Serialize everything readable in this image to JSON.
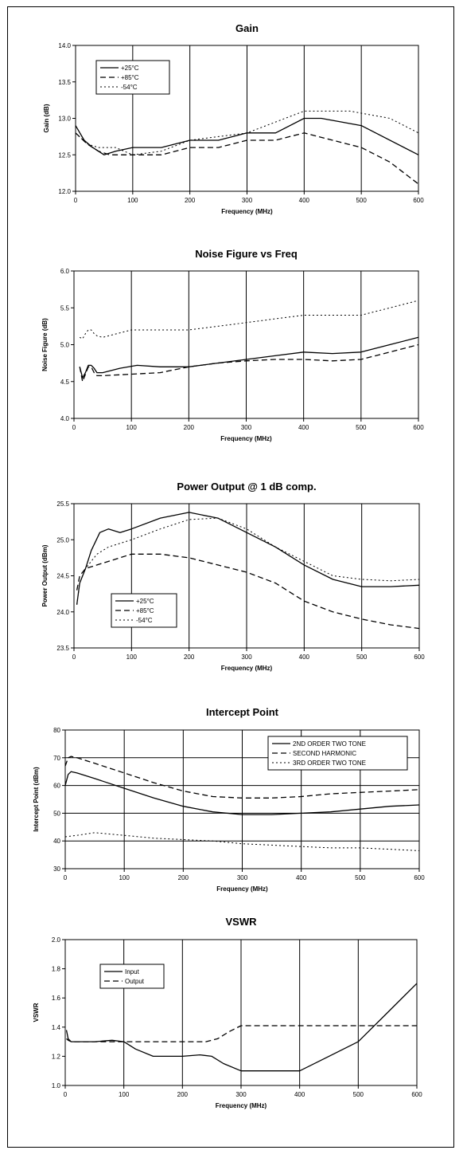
{
  "chart_data": [
    {
      "type": "line",
      "title": "Gain",
      "xlabel": "Frequency (MHz)",
      "ylabel": "Gain (dB)",
      "xlim": [
        0,
        600
      ],
      "ylim": [
        12.0,
        14.0
      ],
      "xticks": [
        "0",
        "100",
        "200",
        "300",
        "400",
        "500",
        "600"
      ],
      "yticks": [
        "12.0",
        "12.5",
        "13.0",
        "13.5",
        "14.0"
      ],
      "grid": "vertical",
      "legend": "top-left",
      "series": [
        {
          "name": "+25°C",
          "style": "solid",
          "x": [
            0,
            15,
            30,
            50,
            70,
            100,
            150,
            200,
            250,
            300,
            350,
            400,
            430,
            500,
            600
          ],
          "y": [
            12.9,
            12.7,
            12.6,
            12.5,
            12.55,
            12.6,
            12.6,
            12.7,
            12.7,
            12.8,
            12.8,
            13.0,
            13.0,
            12.9,
            12.5
          ]
        },
        {
          "name": "+85°C",
          "style": "dashed",
          "x": [
            0,
            20,
            40,
            60,
            100,
            150,
            200,
            250,
            300,
            350,
            400,
            450,
            500,
            550,
            600
          ],
          "y": [
            12.8,
            12.65,
            12.55,
            12.5,
            12.5,
            12.5,
            12.6,
            12.6,
            12.7,
            12.7,
            12.8,
            12.7,
            12.6,
            12.4,
            12.1
          ]
        },
        {
          "name": "-54°C",
          "style": "dotted",
          "x": [
            0,
            20,
            40,
            70,
            100,
            150,
            200,
            250,
            300,
            350,
            400,
            450,
            480,
            550,
            600
          ],
          "y": [
            12.8,
            12.65,
            12.6,
            12.6,
            12.5,
            12.55,
            12.7,
            12.75,
            12.8,
            12.95,
            13.1,
            13.1,
            13.1,
            13.0,
            12.8
          ]
        }
      ]
    },
    {
      "type": "line",
      "title": "Noise Figure vs Freq",
      "xlabel": "Frequency (MHz)",
      "ylabel": "Noise Figure (dB)",
      "xlim": [
        0,
        600
      ],
      "ylim": [
        4.0,
        6.0
      ],
      "xticks": [
        "0",
        "100",
        "200",
        "300",
        "400",
        "500",
        "600"
      ],
      "yticks": [
        "4.0",
        "4.5",
        "5.0",
        "5.5",
        "6.0"
      ],
      "grid": "vertical",
      "legend": "none",
      "series": [
        {
          "name": "",
          "style": "solid",
          "x": [
            10,
            15,
            20,
            25,
            30,
            35,
            40,
            50,
            80,
            110,
            150,
            200,
            250,
            300,
            350,
            400,
            450,
            500,
            550,
            600
          ],
          "y": [
            4.7,
            4.55,
            4.62,
            4.72,
            4.72,
            4.68,
            4.62,
            4.62,
            4.68,
            4.72,
            4.7,
            4.7,
            4.75,
            4.8,
            4.85,
            4.9,
            4.88,
            4.9,
            5.0,
            5.1
          ]
        },
        {
          "name": "",
          "style": "dashed",
          "x": [
            10,
            15,
            20,
            25,
            30,
            35,
            40,
            50,
            100,
            150,
            200,
            250,
            300,
            350,
            400,
            450,
            500,
            550,
            600
          ],
          "y": [
            4.7,
            4.5,
            4.6,
            4.7,
            4.7,
            4.62,
            4.58,
            4.58,
            4.6,
            4.62,
            4.7,
            4.75,
            4.78,
            4.8,
            4.8,
            4.78,
            4.8,
            4.9,
            5.0
          ]
        },
        {
          "name": "",
          "style": "dotted",
          "x": [
            10,
            15,
            20,
            25,
            30,
            35,
            40,
            50,
            100,
            150,
            200,
            250,
            300,
            350,
            400,
            450,
            500,
            550,
            600
          ],
          "y": [
            5.1,
            5.08,
            5.15,
            5.2,
            5.2,
            5.15,
            5.12,
            5.1,
            5.2,
            5.2,
            5.2,
            5.25,
            5.3,
            5.35,
            5.4,
            5.4,
            5.4,
            5.5,
            5.6
          ]
        }
      ]
    },
    {
      "type": "line",
      "title": "Power Output @ 1 dB comp.",
      "xlabel": "Frequency (MHz)",
      "ylabel": "Power Output (dBm)",
      "xlim": [
        0,
        600
      ],
      "ylim": [
        23.5,
        25.5
      ],
      "xticks": [
        "0",
        "100",
        "200",
        "300",
        "400",
        "500",
        "600"
      ],
      "yticks": [
        "23.5",
        "24.0",
        "24.5",
        "25.0",
        "25.5"
      ],
      "grid": "vertical",
      "legend": "bottom-left",
      "series": [
        {
          "name": "+25°C",
          "style": "solid",
          "x": [
            5,
            10,
            20,
            30,
            45,
            60,
            80,
            100,
            150,
            200,
            250,
            300,
            350,
            400,
            450,
            500,
            550,
            600
          ],
          "y": [
            24.1,
            24.4,
            24.6,
            24.85,
            25.1,
            25.15,
            25.1,
            25.15,
            25.3,
            25.38,
            25.3,
            25.1,
            24.9,
            24.65,
            24.45,
            24.35,
            24.35,
            24.37
          ]
        },
        {
          "name": "+85°C",
          "style": "dashed",
          "x": [
            5,
            10,
            20,
            40,
            60,
            100,
            150,
            200,
            250,
            300,
            350,
            400,
            450,
            500,
            550,
            600
          ],
          "y": [
            24.3,
            24.5,
            24.6,
            24.65,
            24.7,
            24.8,
            24.8,
            24.75,
            24.65,
            24.55,
            24.4,
            24.15,
            24.0,
            23.9,
            23.82,
            23.77
          ]
        },
        {
          "name": "-54°C",
          "style": "dotted",
          "x": [
            5,
            10,
            20,
            40,
            60,
            100,
            150,
            200,
            250,
            300,
            350,
            400,
            450,
            500,
            550,
            600
          ],
          "y": [
            24.1,
            24.4,
            24.6,
            24.8,
            24.9,
            25.0,
            25.15,
            25.28,
            25.3,
            25.15,
            24.9,
            24.7,
            24.5,
            24.45,
            24.43,
            24.45
          ]
        }
      ]
    },
    {
      "type": "line",
      "title": "Intercept Point",
      "xlabel": "Frequency (MHz)",
      "ylabel": "Intercept Point (dBm)",
      "xlim": [
        0,
        600
      ],
      "ylim": [
        30,
        80
      ],
      "xticks": [
        "0",
        "100",
        "200",
        "300",
        "400",
        "500",
        "600"
      ],
      "yticks": [
        "30",
        "40",
        "50",
        "60",
        "70",
        "80"
      ],
      "grid": "both",
      "legend": "top-right",
      "series": [
        {
          "name": "2ND ORDER TWO TONE",
          "style": "solid",
          "x": [
            0,
            5,
            10,
            20,
            50,
            100,
            150,
            200,
            250,
            300,
            350,
            400,
            450,
            500,
            550,
            600
          ],
          "y": [
            60,
            64,
            65,
            64.5,
            62.5,
            59,
            55.5,
            52.5,
            50.5,
            49.5,
            49.5,
            50,
            50.5,
            51.5,
            52.5,
            53
          ]
        },
        {
          "name": "SECOND HARMONIC",
          "style": "dashed",
          "x": [
            0,
            5,
            10,
            20,
            50,
            100,
            150,
            200,
            250,
            300,
            350,
            400,
            450,
            500,
            550,
            600
          ],
          "y": [
            67,
            70,
            70.5,
            70,
            68,
            64.5,
            61,
            58,
            56,
            55.5,
            55.5,
            56,
            57,
            57.5,
            58,
            58.5
          ]
        },
        {
          "name": "3RD ORDER TWO TONE",
          "style": "dotted",
          "x": [
            0,
            20,
            50,
            100,
            150,
            200,
            250,
            300,
            350,
            400,
            450,
            500,
            550,
            600
          ],
          "y": [
            41.5,
            42,
            43,
            42,
            41,
            40.5,
            40,
            39,
            38.5,
            38,
            37.5,
            37.5,
            37,
            36.5
          ]
        }
      ]
    },
    {
      "type": "line",
      "title": "VSWR",
      "xlabel": "Frequency (MHz)",
      "ylabel": "VSWR",
      "xlim": [
        0,
        600
      ],
      "ylim": [
        1.0,
        2.0
      ],
      "xticks": [
        "0",
        "100",
        "200",
        "300",
        "400",
        "500",
        "600"
      ],
      "yticks": [
        "1.0",
        "1.2",
        "1.4",
        "1.6",
        "1.8",
        "2.0"
      ],
      "grid": "vertical",
      "legend": "top-left",
      "series": [
        {
          "name": "Input",
          "style": "solid",
          "x": [
            2,
            5,
            10,
            20,
            50,
            80,
            100,
            120,
            150,
            200,
            230,
            250,
            270,
            300,
            350,
            400,
            450,
            500,
            550,
            600
          ],
          "y": [
            1.38,
            1.32,
            1.3,
            1.3,
            1.3,
            1.31,
            1.3,
            1.25,
            1.2,
            1.2,
            1.21,
            1.2,
            1.15,
            1.1,
            1.1,
            1.1,
            1.2,
            1.3,
            1.5,
            1.7
          ]
        },
        {
          "name": "Output",
          "style": "dashed",
          "x": [
            2,
            5,
            10,
            20,
            50,
            100,
            150,
            200,
            240,
            260,
            280,
            300,
            350,
            400,
            450,
            500,
            550,
            600
          ],
          "y": [
            1.32,
            1.31,
            1.3,
            1.3,
            1.3,
            1.3,
            1.3,
            1.3,
            1.3,
            1.32,
            1.37,
            1.41,
            1.41,
            1.41,
            1.41,
            1.41,
            1.41,
            1.41
          ]
        }
      ]
    }
  ]
}
